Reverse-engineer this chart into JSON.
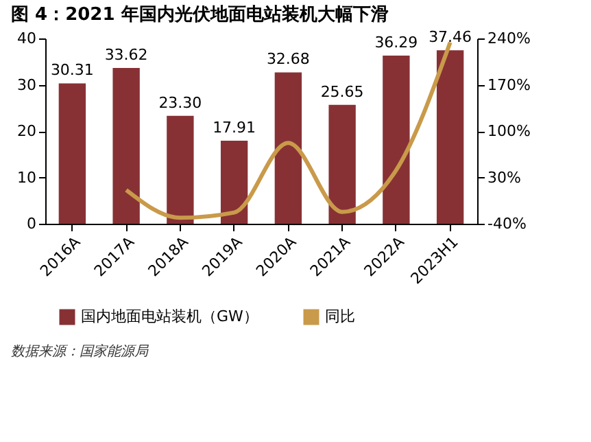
{
  "chart_data": {
    "type": "bar",
    "title": "图 4：2021 年国内光伏地面电站装机大幅下滑",
    "categories": [
      "2016A",
      "2017A",
      "2018A",
      "2019A",
      "2020A",
      "2021A",
      "2022A",
      "2023H1"
    ],
    "series": [
      {
        "name": "国内地面电站装机（GW）",
        "color": "#873135",
        "values": [
          30.31,
          33.62,
          23.3,
          17.91,
          32.68,
          25.65,
          36.29,
          37.46
        ],
        "value_labels": [
          "30.31",
          "33.62",
          "23.30",
          "17.91",
          "32.68",
          "25.65",
          "36.29",
          "37.46"
        ]
      },
      {
        "name": "同比",
        "type": "line",
        "axis": "y2",
        "color": "#c99a4a",
        "values": [
          null,
          11,
          -31,
          -23,
          82,
          -22,
          41,
          234
        ]
      }
    ],
    "ylim": [
      0,
      40
    ],
    "yticks": [
      0,
      10,
      20,
      30,
      40
    ],
    "y2lim": [
      -40,
      240
    ],
    "y2ticks": [
      {
        "value": -40,
        "label": "-40%"
      },
      {
        "value": 30,
        "label": "30%"
      },
      {
        "value": 100,
        "label": "100%"
      },
      {
        "value": 170,
        "label": "170%"
      },
      {
        "value": 240,
        "label": "240%"
      }
    ],
    "grid": false,
    "legend": "bottom",
    "line_style": "solid",
    "marker": "none",
    "annotations": [
      "数据来源：国家能源局"
    ]
  }
}
